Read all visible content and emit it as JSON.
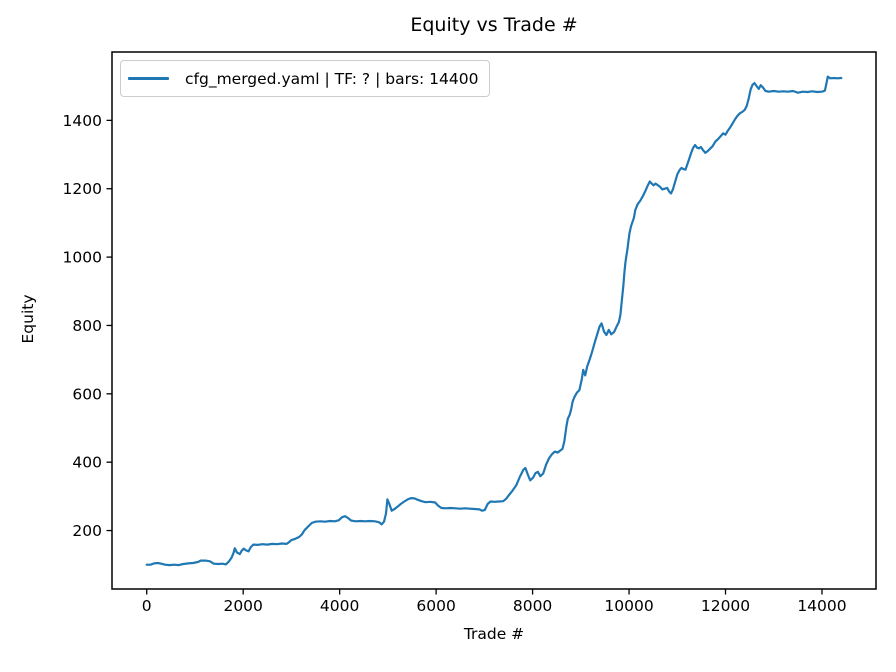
{
  "figure": {
    "title": "Equity vs Trade #"
  },
  "chart_data": {
    "type": "line",
    "title": "Equity vs Trade #",
    "xlabel": "Trade #",
    "ylabel": "Equity",
    "grid": false,
    "legend_position": "upper-left",
    "legend": [
      {
        "label": "cfg_merged.yaml | TF: ? | bars: 14400",
        "color": "#1f77b4"
      }
    ],
    "line_color": "#1f77b4",
    "xlim": [
      -720,
      15120
    ],
    "ylim": [
      29,
      1600
    ],
    "x_ticks": [
      0,
      2000,
      4000,
      6000,
      8000,
      10000,
      12000,
      14000
    ],
    "y_ticks": [
      200,
      400,
      600,
      800,
      1000,
      1200,
      1400
    ],
    "series": [
      {
        "name": "cfg_merged.yaml | TF: ? | bars: 14400",
        "color": "#1f77b4",
        "points": [
          [
            0,
            100
          ],
          [
            80,
            100
          ],
          [
            150,
            104
          ],
          [
            230,
            105
          ],
          [
            300,
            103
          ],
          [
            380,
            100
          ],
          [
            470,
            99
          ],
          [
            570,
            100
          ],
          [
            660,
            99
          ],
          [
            760,
            102
          ],
          [
            860,
            104
          ],
          [
            960,
            105
          ],
          [
            1060,
            108
          ],
          [
            1120,
            112
          ],
          [
            1220,
            112
          ],
          [
            1310,
            110
          ],
          [
            1390,
            103
          ],
          [
            1480,
            102
          ],
          [
            1570,
            103
          ],
          [
            1640,
            101
          ],
          [
            1700,
            109
          ],
          [
            1760,
            121
          ],
          [
            1800,
            134
          ],
          [
            1825,
            148
          ],
          [
            1870,
            136
          ],
          [
            1930,
            131
          ],
          [
            1970,
            141
          ],
          [
            2010,
            147
          ],
          [
            2060,
            142
          ],
          [
            2110,
            139
          ],
          [
            2160,
            152
          ],
          [
            2210,
            159
          ],
          [
            2300,
            158
          ],
          [
            2400,
            160
          ],
          [
            2500,
            159
          ],
          [
            2600,
            161
          ],
          [
            2700,
            160
          ],
          [
            2800,
            162
          ],
          [
            2900,
            161
          ],
          [
            2950,
            166
          ],
          [
            3000,
            172
          ],
          [
            3080,
            176
          ],
          [
            3160,
            181
          ],
          [
            3220,
            189
          ],
          [
            3260,
            199
          ],
          [
            3300,
            205
          ],
          [
            3350,
            212
          ],
          [
            3420,
            222
          ],
          [
            3500,
            226
          ],
          [
            3600,
            227
          ],
          [
            3700,
            226
          ],
          [
            3800,
            228
          ],
          [
            3900,
            227
          ],
          [
            3980,
            230
          ],
          [
            4050,
            239
          ],
          [
            4110,
            242
          ],
          [
            4170,
            237
          ],
          [
            4240,
            229
          ],
          [
            4330,
            227
          ],
          [
            4430,
            228
          ],
          [
            4530,
            227
          ],
          [
            4630,
            228
          ],
          [
            4730,
            227
          ],
          [
            4820,
            224
          ],
          [
            4870,
            218
          ],
          [
            4920,
            226
          ],
          [
            4960,
            250
          ],
          [
            4990,
            291
          ],
          [
            5030,
            278
          ],
          [
            5080,
            258
          ],
          [
            5140,
            263
          ],
          [
            5210,
            271
          ],
          [
            5270,
            278
          ],
          [
            5340,
            285
          ],
          [
            5410,
            291
          ],
          [
            5480,
            295
          ],
          [
            5550,
            294
          ],
          [
            5620,
            290
          ],
          [
            5700,
            286
          ],
          [
            5780,
            283
          ],
          [
            5880,
            284
          ],
          [
            5980,
            282
          ],
          [
            6040,
            273
          ],
          [
            6110,
            266
          ],
          [
            6200,
            265
          ],
          [
            6300,
            266
          ],
          [
            6400,
            265
          ],
          [
            6500,
            264
          ],
          [
            6600,
            265
          ],
          [
            6700,
            264
          ],
          [
            6800,
            263
          ],
          [
            6900,
            262
          ],
          [
            6950,
            258
          ],
          [
            7010,
            260
          ],
          [
            7070,
            278
          ],
          [
            7130,
            285
          ],
          [
            7210,
            284
          ],
          [
            7300,
            285
          ],
          [
            7390,
            286
          ],
          [
            7450,
            293
          ],
          [
            7510,
            304
          ],
          [
            7580,
            316
          ],
          [
            7660,
            332
          ],
          [
            7740,
            358
          ],
          [
            7810,
            378
          ],
          [
            7850,
            383
          ],
          [
            7900,
            364
          ],
          [
            7950,
            347
          ],
          [
            8010,
            355
          ],
          [
            8060,
            368
          ],
          [
            8110,
            372
          ],
          [
            8160,
            359
          ],
          [
            8220,
            367
          ],
          [
            8280,
            393
          ],
          [
            8340,
            411
          ],
          [
            8400,
            423
          ],
          [
            8460,
            431
          ],
          [
            8520,
            428
          ],
          [
            8570,
            434
          ],
          [
            8620,
            439
          ],
          [
            8660,
            462
          ],
          [
            8700,
            503
          ],
          [
            8730,
            527
          ],
          [
            8770,
            539
          ],
          [
            8800,
            555
          ],
          [
            8830,
            577
          ],
          [
            8870,
            591
          ],
          [
            8920,
            604
          ],
          [
            8970,
            611
          ],
          [
            9020,
            643
          ],
          [
            9050,
            670
          ],
          [
            9090,
            654
          ],
          [
            9130,
            679
          ],
          [
            9180,
            699
          ],
          [
            9230,
            721
          ],
          [
            9290,
            751
          ],
          [
            9340,
            774
          ],
          [
            9390,
            797
          ],
          [
            9430,
            806
          ],
          [
            9480,
            782
          ],
          [
            9530,
            772
          ],
          [
            9580,
            787
          ],
          [
            9630,
            774
          ],
          [
            9690,
            781
          ],
          [
            9740,
            796
          ],
          [
            9790,
            810
          ],
          [
            9820,
            831
          ],
          [
            9850,
            872
          ],
          [
            9880,
            915
          ],
          [
            9905,
            958
          ],
          [
            9925,
            984
          ],
          [
            9945,
            1004
          ],
          [
            9965,
            1022
          ],
          [
            9985,
            1044
          ],
          [
            10010,
            1070
          ],
          [
            10040,
            1090
          ],
          [
            10070,
            1102
          ],
          [
            10100,
            1115
          ],
          [
            10130,
            1138
          ],
          [
            10180,
            1155
          ],
          [
            10230,
            1164
          ],
          [
            10280,
            1177
          ],
          [
            10330,
            1191
          ],
          [
            10380,
            1207
          ],
          [
            10430,
            1221
          ],
          [
            10470,
            1215
          ],
          [
            10510,
            1210
          ],
          [
            10550,
            1215
          ],
          [
            10590,
            1211
          ],
          [
            10640,
            1206
          ],
          [
            10690,
            1198
          ],
          [
            10740,
            1200
          ],
          [
            10790,
            1202
          ],
          [
            10830,
            1192
          ],
          [
            10870,
            1186
          ],
          [
            10910,
            1198
          ],
          [
            10950,
            1218
          ],
          [
            11000,
            1242
          ],
          [
            11050,
            1255
          ],
          [
            11090,
            1261
          ],
          [
            11130,
            1257
          ],
          [
            11170,
            1256
          ],
          [
            11210,
            1272
          ],
          [
            11250,
            1288
          ],
          [
            11290,
            1306
          ],
          [
            11330,
            1320
          ],
          [
            11370,
            1328
          ],
          [
            11410,
            1320
          ],
          [
            11450,
            1318
          ],
          [
            11490,
            1322
          ],
          [
            11530,
            1314
          ],
          [
            11580,
            1305
          ],
          [
            11630,
            1310
          ],
          [
            11680,
            1317
          ],
          [
            11730,
            1324
          ],
          [
            11790,
            1338
          ],
          [
            11850,
            1346
          ],
          [
            11900,
            1354
          ],
          [
            11950,
            1362
          ],
          [
            12000,
            1358
          ],
          [
            12050,
            1370
          ],
          [
            12100,
            1380
          ],
          [
            12150,
            1392
          ],
          [
            12200,
            1404
          ],
          [
            12250,
            1414
          ],
          [
            12300,
            1421
          ],
          [
            12350,
            1425
          ],
          [
            12400,
            1431
          ],
          [
            12440,
            1442
          ],
          [
            12480,
            1464
          ],
          [
            12520,
            1490
          ],
          [
            12560,
            1504
          ],
          [
            12600,
            1509
          ],
          [
            12650,
            1499
          ],
          [
            12690,
            1492
          ],
          [
            12730,
            1503
          ],
          [
            12770,
            1497
          ],
          [
            12830,
            1486
          ],
          [
            12900,
            1484
          ],
          [
            13000,
            1486
          ],
          [
            13100,
            1484
          ],
          [
            13200,
            1485
          ],
          [
            13300,
            1484
          ],
          [
            13400,
            1486
          ],
          [
            13500,
            1481
          ],
          [
            13600,
            1484
          ],
          [
            13700,
            1483
          ],
          [
            13800,
            1485
          ],
          [
            13900,
            1483
          ],
          [
            14000,
            1484
          ],
          [
            14060,
            1487
          ],
          [
            14090,
            1506
          ],
          [
            14120,
            1528
          ],
          [
            14170,
            1523
          ],
          [
            14250,
            1524
          ],
          [
            14320,
            1523
          ],
          [
            14400,
            1524
          ]
        ]
      }
    ]
  }
}
